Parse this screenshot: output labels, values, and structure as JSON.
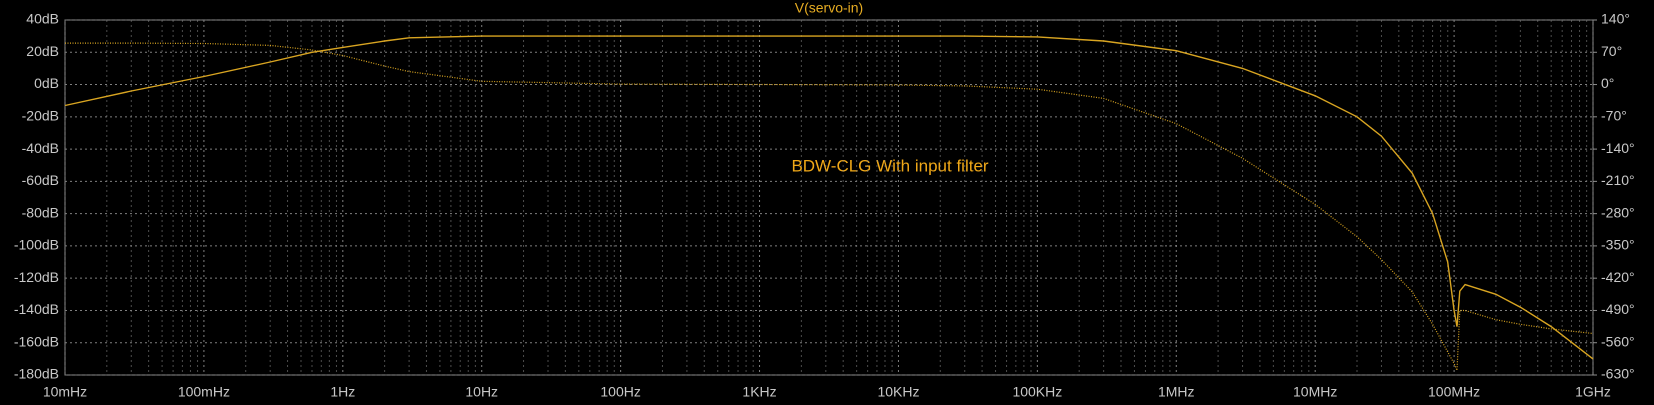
{
  "chart_data": {
    "type": "line",
    "title": "V(servo-in)",
    "annotation": "BDW-CLG With input filter",
    "xscale": "log",
    "grid": true,
    "color": "#d9a521",
    "x": [
      0.01,
      0.03,
      0.1,
      0.3,
      0.6,
      1,
      2,
      3,
      10,
      100,
      1000,
      10000,
      30000,
      100000,
      300000,
      1000000,
      3000000,
      10000000,
      20000000,
      30000000,
      50000000,
      70000000,
      90000000,
      100000000,
      105000000,
      110000000,
      120000000,
      200000000,
      300000000,
      500000000,
      1000000000
    ],
    "series": [
      {
        "color": "#d9a521",
        "style": "solid",
        "values": [
          -13,
          -4,
          5,
          14,
          20,
          23,
          27,
          29,
          30,
          30,
          30,
          30,
          30,
          29.5,
          27,
          21,
          10,
          -7,
          -20,
          -32,
          -55,
          -80,
          -110,
          -140,
          -150,
          -128,
          -124,
          -130,
          -138,
          -150,
          -170
        ]
      },
      {
        "color": "#d9a521",
        "style": "dotted",
        "axis": "y2",
        "values": [
          90,
          90,
          89,
          85,
          75,
          63,
          40,
          28,
          7,
          1,
          0,
          -1,
          -3,
          -10,
          -30,
          -85,
          -160,
          -260,
          -330,
          -380,
          -450,
          -520,
          -580,
          -605,
          -620,
          -490,
          -490,
          -510,
          -520,
          -530,
          -540
        ]
      }
    ],
    "xlim": [
      0.01,
      1000000000
    ],
    "xticks": [
      {
        "value": 0.01,
        "label": "10mHz"
      },
      {
        "value": 0.1,
        "label": "100mHz"
      },
      {
        "value": 1,
        "label": "1Hz"
      },
      {
        "value": 10,
        "label": "10Hz"
      },
      {
        "value": 100,
        "label": "100Hz"
      },
      {
        "value": 1000,
        "label": "1KHz"
      },
      {
        "value": 10000,
        "label": "10KHz"
      },
      {
        "value": 100000,
        "label": "100KHz"
      },
      {
        "value": 1000000,
        "label": "1MHz"
      },
      {
        "value": 10000000,
        "label": "10MHz"
      },
      {
        "value": 100000000,
        "label": "100MHz"
      },
      {
        "value": 1000000000,
        "label": "1GHz"
      }
    ],
    "ylim": [
      -180,
      40
    ],
    "yticks": [
      {
        "value": 40,
        "label": "40dB"
      },
      {
        "value": 20,
        "label": "20dB"
      },
      {
        "value": 0,
        "label": "0dB"
      },
      {
        "value": -20,
        "label": "-20dB"
      },
      {
        "value": -40,
        "label": "-40dB"
      },
      {
        "value": -60,
        "label": "-60dB"
      },
      {
        "value": -80,
        "label": "-80dB"
      },
      {
        "value": -100,
        "label": "-100dB"
      },
      {
        "value": -120,
        "label": "-120dB"
      },
      {
        "value": -140,
        "label": "-140dB"
      },
      {
        "value": -160,
        "label": "-160dB"
      },
      {
        "value": -180,
        "label": "-180dB"
      }
    ],
    "y2lim": [
      -630,
      140
    ],
    "y2ticks": [
      {
        "value": 140,
        "label": "140°"
      },
      {
        "value": 70,
        "label": "70°"
      },
      {
        "value": 0,
        "label": "0°"
      },
      {
        "value": -70,
        "label": "-70°"
      },
      {
        "value": -140,
        "label": "-140°"
      },
      {
        "value": -210,
        "label": "-210°"
      },
      {
        "value": -280,
        "label": "-280°"
      },
      {
        "value": -350,
        "label": "-350°"
      },
      {
        "value": -420,
        "label": "-420°"
      },
      {
        "value": -490,
        "label": "-490°"
      },
      {
        "value": -560,
        "label": "-560°"
      },
      {
        "value": -630,
        "label": "-630°"
      }
    ]
  }
}
